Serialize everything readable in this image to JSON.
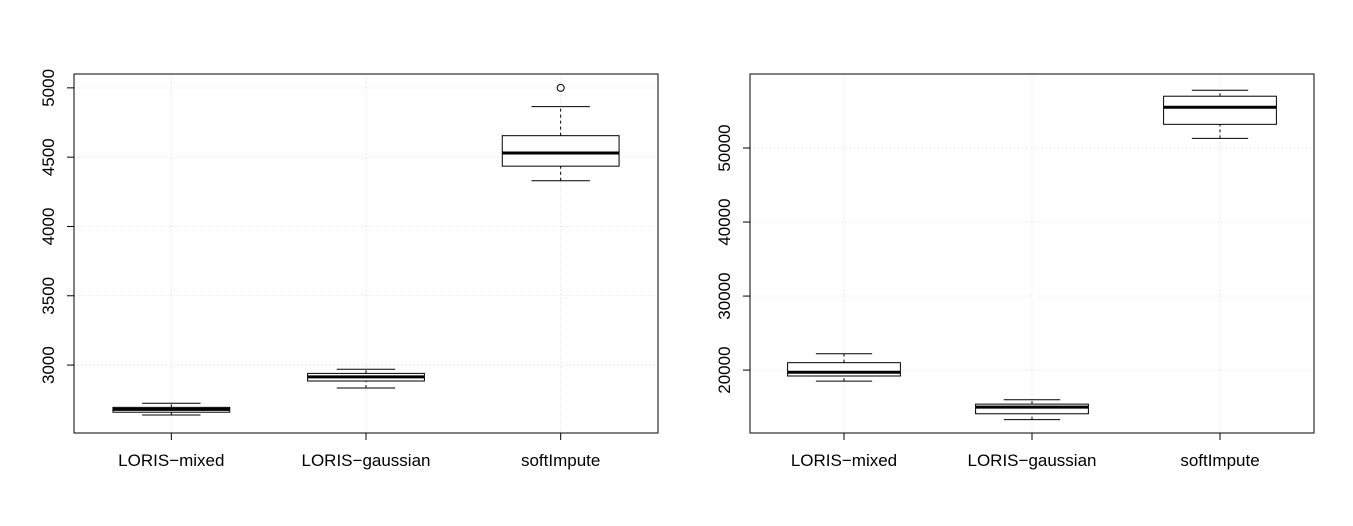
{
  "chart_data": [
    {
      "type": "box",
      "title": "",
      "xlabel": "",
      "ylabel": "",
      "categories": [
        "LORIS−mixed",
        "LORIS−gaussian",
        "softImpute"
      ],
      "ylim": [
        2510,
        5100
      ],
      "yticks": [
        3000,
        3500,
        4000,
        4500,
        5000
      ],
      "grid": true,
      "boxes": [
        {
          "min": 2640,
          "q1": 2660,
          "median": 2680,
          "q3": 2695,
          "max": 2725,
          "outliers": []
        },
        {
          "min": 2835,
          "q1": 2885,
          "median": 2915,
          "q3": 2940,
          "max": 2970,
          "outliers": []
        },
        {
          "min": 4330,
          "q1": 4435,
          "median": 4530,
          "q3": 4655,
          "max": 4865,
          "outliers": [
            5000
          ]
        }
      ]
    },
    {
      "type": "box",
      "title": "",
      "xlabel": "",
      "ylabel": "",
      "categories": [
        "LORIS−mixed",
        "LORIS−gaussian",
        "softImpute"
      ],
      "ylim": [
        11500,
        60000
      ],
      "yticks": [
        20000,
        30000,
        40000,
        50000
      ],
      "grid": true,
      "boxes": [
        {
          "min": 18500,
          "q1": 19200,
          "median": 19700,
          "q3": 21000,
          "max": 22200,
          "outliers": []
        },
        {
          "min": 13300,
          "q1": 14100,
          "median": 15000,
          "q3": 15400,
          "max": 16000,
          "outliers": []
        },
        {
          "min": 51300,
          "q1": 53200,
          "median": 55500,
          "q3": 57000,
          "max": 57800,
          "outliers": []
        }
      ]
    }
  ]
}
